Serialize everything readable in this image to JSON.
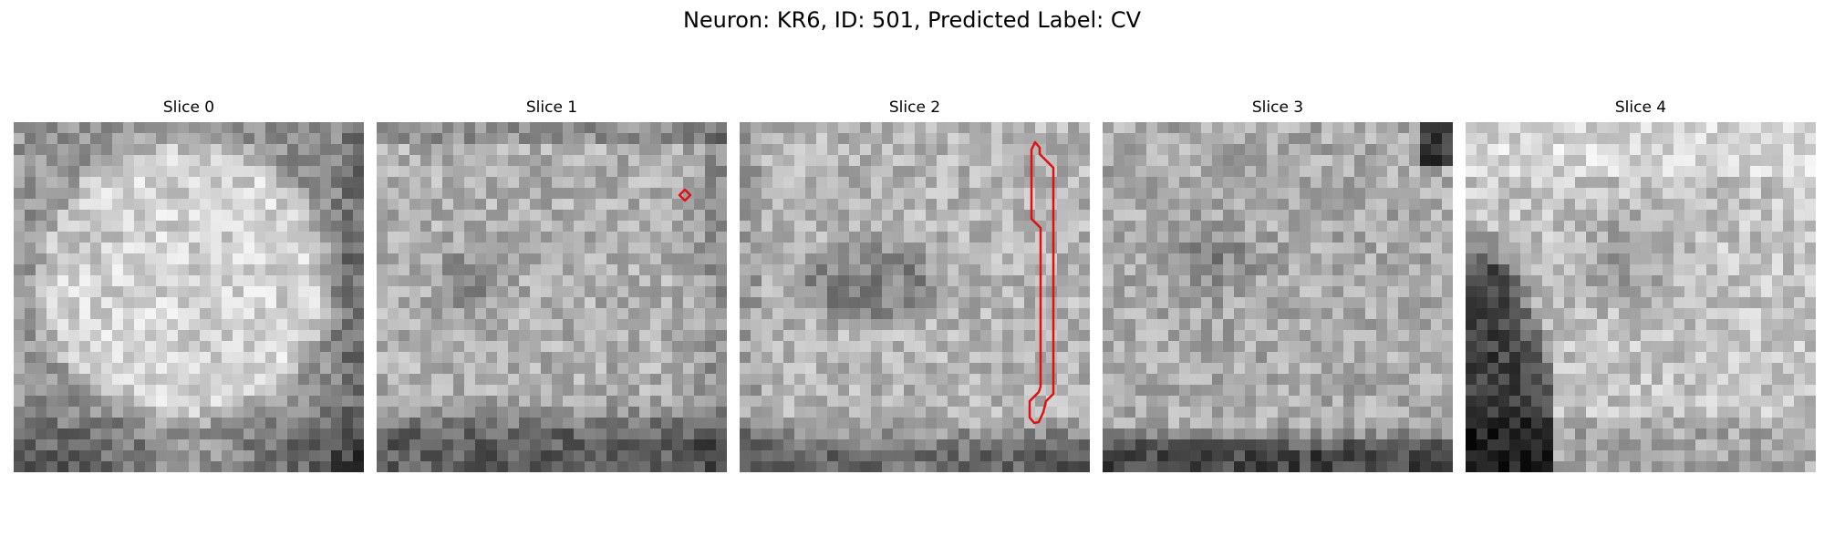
{
  "title": "Neuron: KR6, ID: 501, Predicted Label: CV",
  "overlay_color": "#e01010",
  "slices": [
    {
      "label": "Slice 0",
      "seed": 11,
      "profile": "round-bright-cell",
      "has_contour": false
    },
    {
      "label": "Slice 1",
      "seed": 23,
      "profile": "textured-cell-dark-lower-edge",
      "has_contour": true,
      "contour_shape": "small-diamond"
    },
    {
      "label": "Slice 2",
      "seed": 37,
      "profile": "cell-dark-center-dark-bottom",
      "has_contour": true,
      "contour_shape": "tall-vertical-outline"
    },
    {
      "label": "Slice 3",
      "seed": 41,
      "profile": "speckled-cell-dark-bottom",
      "has_contour": false
    },
    {
      "label": "Slice 4",
      "seed": 53,
      "profile": "bright-top-dark-left-wedge",
      "has_contour": false
    }
  ]
}
